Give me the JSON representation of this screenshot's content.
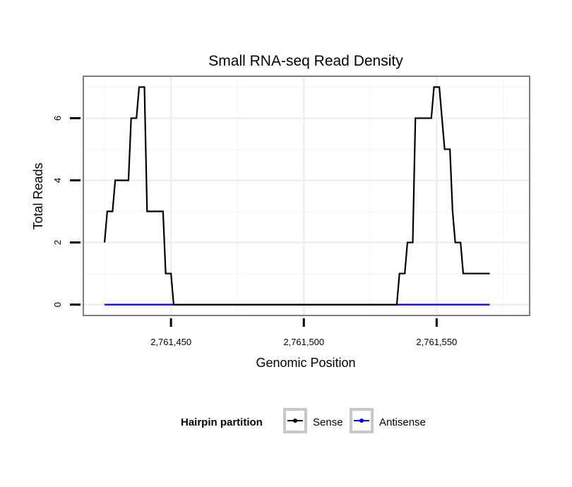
{
  "chart_data": {
    "type": "line",
    "title": "Small RNA-seq Read Density",
    "xlabel": "Genomic Position",
    "ylabel": "Total Reads",
    "xlim": [
      2761417,
      2761585
    ],
    "ylim": [
      -0.35,
      7.35
    ],
    "x_ticks": [
      2761450,
      2761500,
      2761550
    ],
    "x_tick_labels": [
      "2,761,450",
      "2,761,500",
      "2,761,550"
    ],
    "y_ticks": [
      0,
      2,
      4,
      6
    ],
    "y_tick_labels": [
      "0",
      "2",
      "4",
      "6"
    ],
    "grid": true,
    "legend": {
      "title": "Hairpin partition",
      "position": "bottom"
    },
    "series": [
      {
        "name": "Sense",
        "color": "#000000",
        "points": [
          [
            2761425,
            2
          ],
          [
            2761426,
            3
          ],
          [
            2761428,
            3
          ],
          [
            2761429,
            4
          ],
          [
            2761433,
            4
          ],
          [
            2761434,
            4
          ],
          [
            2761435,
            6
          ],
          [
            2761437,
            6
          ],
          [
            2761438,
            7
          ],
          [
            2761440,
            7
          ],
          [
            2761441,
            3
          ],
          [
            2761445,
            3
          ],
          [
            2761447,
            3
          ],
          [
            2761448,
            1
          ],
          [
            2761450,
            1
          ],
          [
            2761451,
            0
          ],
          [
            2761535,
            0
          ],
          [
            2761536,
            1
          ],
          [
            2761538,
            1
          ],
          [
            2761539,
            2
          ],
          [
            2761541,
            2
          ],
          [
            2761542,
            6
          ],
          [
            2761546,
            6
          ],
          [
            2761548,
            6
          ],
          [
            2761549,
            7
          ],
          [
            2761551,
            7
          ],
          [
            2761552,
            6
          ],
          [
            2761553,
            5
          ],
          [
            2761555,
            5
          ],
          [
            2761556,
            3
          ],
          [
            2761557,
            2
          ],
          [
            2761559,
            2
          ],
          [
            2761560,
            1
          ],
          [
            2761570,
            1
          ]
        ]
      },
      {
        "name": "Antisense",
        "color": "#0000ff",
        "points": [
          [
            2761425,
            0
          ],
          [
            2761570,
            0
          ]
        ]
      }
    ]
  }
}
